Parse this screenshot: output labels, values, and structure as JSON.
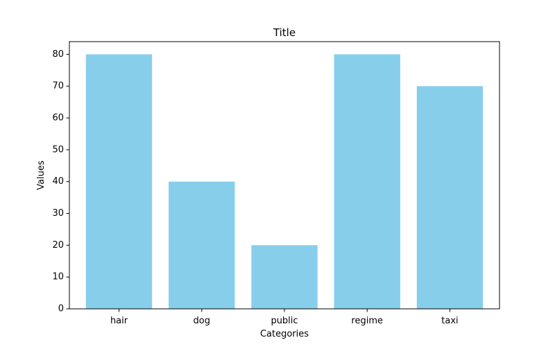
{
  "chart_data": {
    "type": "bar",
    "title": "Title",
    "xlabel": "Categories",
    "ylabel": "Values",
    "categories": [
      "hair",
      "dog",
      "public",
      "regime",
      "taxi"
    ],
    "values": [
      80,
      40,
      20,
      80,
      70
    ],
    "ylim": [
      0,
      84
    ],
    "yticks": [
      0,
      10,
      20,
      30,
      40,
      50,
      60,
      70,
      80
    ],
    "bar_color": "#87CEEB",
    "grid": false,
    "legend": "none"
  }
}
